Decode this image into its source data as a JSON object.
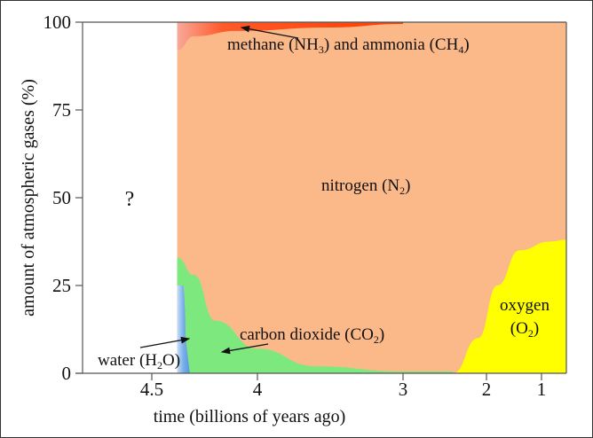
{
  "chart_data": {
    "type": "area",
    "title": "",
    "xlabel": "time (billions of years ago)",
    "ylabel": "amount of atmospheric gases (%)",
    "x_ticks": [
      {
        "value": 4.5,
        "label": "4.5"
      },
      {
        "value": 4,
        "label": "4"
      },
      {
        "value": 3,
        "label": "3"
      },
      {
        "value": 2,
        "label": "2"
      },
      {
        "value": 1,
        "label": "1"
      }
    ],
    "y_ticks": [
      {
        "value": 0,
        "label": "0"
      },
      {
        "value": 25,
        "label": "25"
      },
      {
        "value": 50,
        "label": "50"
      },
      {
        "value": 75,
        "label": "75"
      },
      {
        "value": 100,
        "label": "100"
      }
    ],
    "ylim": [
      0,
      100
    ],
    "unknown_label": "?",
    "series": [
      {
        "name": "water",
        "label": "water (H2O)",
        "label_main": "water (H",
        "label_sub": "2",
        "label_end": "O)",
        "color": "#7aaee8",
        "points": [
          [
            4.38,
            0
          ],
          [
            4.38,
            25
          ],
          [
            4.35,
            25
          ],
          [
            4.34,
            10
          ],
          [
            4.32,
            0
          ]
        ]
      },
      {
        "name": "carbon dioxide",
        "label_main": "carbon dioxide (CO",
        "label_sub": "2",
        "label_end": ")",
        "color": "#7de87d",
        "points": [
          [
            4.38,
            33
          ],
          [
            4.3,
            28
          ],
          [
            4.2,
            15
          ],
          [
            4.0,
            7
          ],
          [
            3.6,
            2
          ],
          [
            3.0,
            0.5
          ],
          [
            2.4,
            0.5
          ]
        ]
      },
      {
        "name": "nitrogen",
        "label_main": "nitrogen (N",
        "label_sub": "2",
        "label_end": ")",
        "color": "#fbb98a"
      },
      {
        "name": "oxygen",
        "label_main": "oxygen",
        "label_sub2": "(O",
        "label_sub": "2",
        "label_end": ")",
        "color": "#ffff00",
        "points": [
          [
            2.4,
            0
          ],
          [
            2.1,
            10
          ],
          [
            1.8,
            25
          ],
          [
            1.4,
            35
          ],
          [
            0.9,
            37.5
          ],
          [
            0.7,
            38
          ]
        ]
      },
      {
        "name": "methane and ammonia",
        "label_a": "methane (NH",
        "label_a_sub": "3",
        "label_b": ") and ammonia (CH",
        "label_b_sub": "4",
        "label_c": ")",
        "color": "#ff4500",
        "points": [
          [
            4.38,
            100
          ],
          [
            4.38,
            92
          ],
          [
            4.3,
            96
          ],
          [
            4.1,
            97.5
          ],
          [
            3.5,
            98.5
          ],
          [
            3.0,
            99.5
          ]
        ]
      }
    ]
  }
}
